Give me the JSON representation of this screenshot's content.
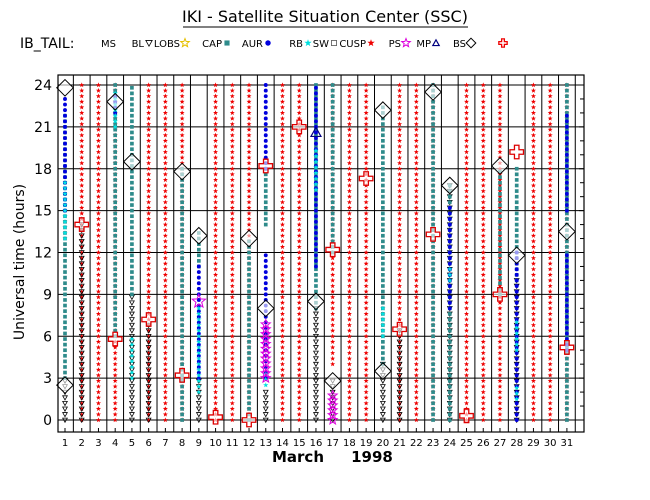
{
  "chart_data": {
    "type": "scatter",
    "title": "IKI - Satellite Situation Center (SSC)",
    "satellite_label": "IB_TAIL:",
    "xlabel_month": "March",
    "xlabel_year": "1998",
    "ylabel": "Universal time (hours)",
    "x_range": [
      1,
      31
    ],
    "ylim": [
      0,
      24
    ],
    "y_ticks": [
      "0",
      "3",
      "6",
      "9",
      "12",
      "15",
      "18",
      "21",
      "24"
    ],
    "x_ticks": [
      "1",
      "2",
      "3",
      "4",
      "5",
      "6",
      "7",
      "8",
      "9",
      "10",
      "11",
      "12",
      "13",
      "14",
      "15",
      "16",
      "17",
      "18",
      "19",
      "20",
      "21",
      "22",
      "23",
      "24",
      "25",
      "26",
      "27",
      "28",
      "29",
      "30",
      "31"
    ],
    "grid": true,
    "legend": [
      {
        "key": "MS",
        "label": "MS",
        "marker": "none",
        "color": "#000000"
      },
      {
        "key": "BL",
        "label": "BL",
        "marker": "triangle-down",
        "color": "#000000"
      },
      {
        "key": "LOBS",
        "label": "LOBS",
        "marker": "star-outline",
        "color": "#e6c000"
      },
      {
        "key": "CAP",
        "label": "CAP",
        "marker": "square",
        "color": "#2e8b8b"
      },
      {
        "key": "AUR",
        "label": "AUR",
        "marker": "dot",
        "color": "#0000dd"
      },
      {
        "key": "RB",
        "label": "RB",
        "marker": "star",
        "color": "#00e0e0"
      },
      {
        "key": "SW",
        "label": "SW",
        "marker": "square-open",
        "color": "#555555"
      },
      {
        "key": "CUSP",
        "label": "CUSP",
        "marker": "star",
        "color": "#ee0000"
      },
      {
        "key": "PS",
        "label": "PS",
        "marker": "star-outline",
        "color": "#dd00dd"
      },
      {
        "key": "MP",
        "label": "MP",
        "marker": "triangle",
        "color": "#000080"
      },
      {
        "key": "BS",
        "label": "BS",
        "marker": "diamond",
        "color": "#000000"
      },
      {
        "key": "SHOCK",
        "label": "",
        "marker": "cross",
        "color": "#ee0000"
      }
    ],
    "series": [
      {
        "name": "CUSP",
        "color": "#ee0000",
        "segments": [
          [
            2,
            0,
            24
          ],
          [
            3,
            0,
            24
          ],
          [
            4,
            0,
            24
          ],
          [
            6,
            0,
            24
          ],
          [
            7,
            0,
            24
          ],
          [
            8,
            0,
            24
          ],
          [
            10,
            0,
            24
          ],
          [
            11,
            0,
            24
          ],
          [
            12,
            0,
            24
          ],
          [
            14,
            0,
            24
          ],
          [
            15,
            0,
            24
          ],
          [
            17,
            4,
            24
          ],
          [
            18,
            0,
            24
          ],
          [
            19,
            0,
            24
          ],
          [
            21,
            0,
            24
          ],
          [
            22,
            0,
            24
          ],
          [
            23,
            0,
            24
          ],
          [
            25,
            0,
            24
          ],
          [
            26,
            0,
            24
          ],
          [
            27,
            0,
            24
          ],
          [
            29,
            0,
            24
          ],
          [
            30,
            0,
            24
          ],
          [
            31,
            0,
            24
          ]
        ]
      },
      {
        "name": "BL",
        "color": "#000000",
        "segments": [
          [
            1,
            0,
            3
          ],
          [
            2,
            0,
            14
          ],
          [
            5,
            0,
            9
          ],
          [
            6,
            0,
            7
          ],
          [
            9,
            0,
            3
          ],
          [
            13,
            0,
            2
          ],
          [
            16,
            0,
            8
          ],
          [
            17,
            0,
            3
          ],
          [
            20,
            0,
            4
          ],
          [
            21,
            0,
            6.5
          ],
          [
            24,
            0,
            17
          ],
          [
            28,
            0,
            10
          ]
        ]
      },
      {
        "name": "CAP",
        "color": "#2e8b8b",
        "segments": [
          [
            1,
            3,
            22
          ],
          [
            4,
            6,
            24
          ],
          [
            5,
            9,
            24
          ],
          [
            8,
            0,
            18
          ],
          [
            9,
            11,
            13.5
          ],
          [
            12,
            0,
            13
          ],
          [
            13,
            14,
            18
          ],
          [
            16,
            8,
            24
          ],
          [
            17,
            12,
            24
          ],
          [
            20,
            4,
            22.5
          ],
          [
            23,
            0,
            24
          ],
          [
            24,
            0,
            17
          ],
          [
            27,
            9,
            18
          ],
          [
            28,
            10,
            18
          ],
          [
            31,
            0,
            24
          ]
        ]
      },
      {
        "name": "AUR",
        "color": "#0000dd",
        "segments": [
          [
            1,
            15,
            23
          ],
          [
            4,
            22,
            23.5
          ],
          [
            9,
            3,
            11
          ],
          [
            13,
            3,
            12
          ],
          [
            13,
            18,
            24
          ],
          [
            16,
            11,
            24
          ],
          [
            24,
            8,
            15.5
          ],
          [
            28,
            0,
            12
          ],
          [
            31,
            5,
            12
          ],
          [
            31,
            15,
            22
          ]
        ]
      },
      {
        "name": "RB",
        "color": "#00e0e0",
        "segments": [
          [
            1,
            13,
            17
          ],
          [
            4,
            21,
            23.5
          ],
          [
            5,
            3,
            6
          ],
          [
            9,
            2,
            8
          ],
          [
            13,
            2.5,
            3.5
          ],
          [
            16,
            16.5,
            19.5
          ],
          [
            20,
            6,
            8
          ],
          [
            24,
            10,
            11
          ],
          [
            28,
            1.5,
            2.5
          ],
          [
            28,
            5,
            7
          ]
        ]
      },
      {
        "name": "PS",
        "color": "#dd00dd",
        "segments": [
          [
            13,
            3,
            7
          ],
          [
            17,
            0,
            2
          ]
        ]
      }
    ],
    "bow_shock_crossings": [
      {
        "day": 1,
        "hour": 23.8
      },
      {
        "day": 1,
        "hour": 2.5
      },
      {
        "day": 4,
        "hour": 22.8
      },
      {
        "day": 5,
        "hour": 18.5
      },
      {
        "day": 8,
        "hour": 17.8
      },
      {
        "day": 9,
        "hour": 13.2
      },
      {
        "day": 12,
        "hour": 13
      },
      {
        "day": 13,
        "hour": 8
      },
      {
        "day": 16,
        "hour": 8.5
      },
      {
        "day": 17,
        "hour": 2.8
      },
      {
        "day": 20,
        "hour": 22.2
      },
      {
        "day": 20,
        "hour": 3.5
      },
      {
        "day": 23,
        "hour": 23.5
      },
      {
        "day": 24,
        "hour": 16.8
      },
      {
        "day": 27,
        "hour": 18.2
      },
      {
        "day": 28,
        "hour": 11.8
      },
      {
        "day": 31,
        "hour": 13.5
      }
    ],
    "shock_crossings": [
      {
        "day": 2,
        "hour": 14
      },
      {
        "day": 4,
        "hour": 5.8
      },
      {
        "day": 6,
        "hour": 7.2
      },
      {
        "day": 8,
        "hour": 3.2
      },
      {
        "day": 10,
        "hour": 0.2
      },
      {
        "day": 12,
        "hour": 0
      },
      {
        "day": 13,
        "hour": 18.2
      },
      {
        "day": 15,
        "hour": 21
      },
      {
        "day": 17,
        "hour": 12.2
      },
      {
        "day": 19,
        "hour": 17.3
      },
      {
        "day": 21,
        "hour": 6.5
      },
      {
        "day": 23,
        "hour": 13.3
      },
      {
        "day": 25,
        "hour": 0.3
      },
      {
        "day": 27,
        "hour": 9
      },
      {
        "day": 28,
        "hour": 19.2
      },
      {
        "day": 31,
        "hour": 5.2
      }
    ],
    "magnetopause_crossings": [
      {
        "day": 16,
        "hour": 20.6
      }
    ],
    "ps_star_crossings": [
      {
        "day": 9,
        "hour": 8.5
      }
    ]
  }
}
